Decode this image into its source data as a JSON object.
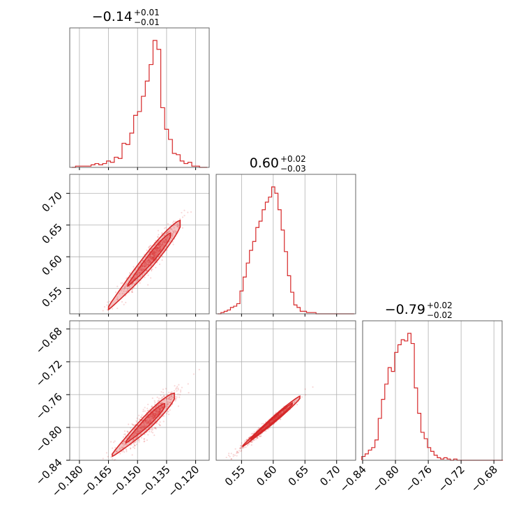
{
  "chart_data": {
    "type": "corner",
    "color": "#d62728",
    "parameters": [
      {
        "title": "−0.14",
        "err_plus": "+0.01",
        "err_minus": "−0.01",
        "range": [
          -0.185,
          -0.113
        ],
        "ticks": [
          -0.18,
          -0.165,
          -0.15,
          -0.135,
          -0.12
        ],
        "tick_labels": [
          "−0.180",
          "−0.165",
          "−0.150",
          "−0.135",
          "−0.120"
        ]
      },
      {
        "title": "0.60",
        "err_plus": "+0.02",
        "err_minus": "−0.03",
        "range": [
          0.51,
          0.73
        ],
        "ticks": [
          0.55,
          0.6,
          0.65,
          0.7
        ],
        "tick_labels": [
          "0.55",
          "0.60",
          "0.65",
          "0.70"
        ]
      },
      {
        "title": "−0.79",
        "err_plus": "+0.02",
        "err_minus": "−0.02",
        "range": [
          -0.84,
          -0.67
        ],
        "ticks": [
          -0.84,
          -0.8,
          -0.76,
          -0.72,
          -0.68
        ],
        "tick_labels": [
          "−0.84",
          "−0.80",
          "−0.76",
          "−0.72",
          "−0.68"
        ]
      }
    ],
    "histograms": [
      {
        "param": 0,
        "centers": [
          -0.183,
          -0.181,
          -0.179,
          -0.177,
          -0.175,
          -0.173,
          -0.171,
          -0.169,
          -0.167,
          -0.165,
          -0.163,
          -0.161,
          -0.159,
          -0.157,
          -0.155,
          -0.153,
          -0.151,
          -0.149,
          -0.147,
          -0.145,
          -0.143,
          -0.141,
          -0.139,
          -0.137,
          -0.135,
          -0.133,
          -0.131,
          -0.129,
          -0.127,
          -0.125,
          -0.123,
          -0.121,
          -0.119,
          -0.117,
          -0.115
        ],
        "counts": [
          0.0,
          0.01,
          0.01,
          0.01,
          0.01,
          0.02,
          0.03,
          0.02,
          0.03,
          0.05,
          0.04,
          0.08,
          0.07,
          0.19,
          0.18,
          0.27,
          0.41,
          0.44,
          0.56,
          0.68,
          0.81,
          1.0,
          0.93,
          0.47,
          0.3,
          0.22,
          0.11,
          0.1,
          0.05,
          0.03,
          0.04,
          0.01,
          0.01,
          0.0,
          0.0
        ]
      },
      {
        "param": 1,
        "centers": [
          0.515,
          0.52,
          0.525,
          0.53,
          0.535,
          0.54,
          0.545,
          0.55,
          0.555,
          0.56,
          0.565,
          0.57,
          0.575,
          0.58,
          0.585,
          0.59,
          0.595,
          0.6,
          0.605,
          0.61,
          0.615,
          0.62,
          0.625,
          0.63,
          0.635,
          0.64,
          0.645,
          0.65,
          0.655,
          0.66,
          0.665,
          0.67,
          0.675,
          0.68,
          0.685,
          0.69,
          0.695,
          0.7,
          0.705,
          0.71,
          0.715,
          0.72,
          0.725
        ],
        "counts": [
          0.0,
          0.01,
          0.02,
          0.03,
          0.05,
          0.06,
          0.08,
          0.18,
          0.29,
          0.4,
          0.5,
          0.57,
          0.68,
          0.73,
          0.82,
          0.88,
          0.92,
          1.0,
          0.95,
          0.82,
          0.66,
          0.49,
          0.3,
          0.17,
          0.07,
          0.05,
          0.02,
          0.02,
          0.01,
          0.01,
          0.01,
          0.0,
          0.0,
          0.0,
          0.0,
          0.0,
          0.0,
          0.0,
          0.0,
          0.0,
          0.0,
          0.0,
          0.0
        ]
      },
      {
        "param": 2,
        "centers": [
          -0.839,
          -0.835,
          -0.831,
          -0.827,
          -0.823,
          -0.819,
          -0.815,
          -0.811,
          -0.807,
          -0.803,
          -0.799,
          -0.795,
          -0.791,
          -0.787,
          -0.783,
          -0.779,
          -0.775,
          -0.771,
          -0.767,
          -0.763,
          -0.759,
          -0.755,
          -0.751,
          -0.747,
          -0.743,
          -0.739,
          -0.735,
          -0.731,
          -0.727,
          -0.723,
          -0.719,
          -0.715,
          -0.711,
          -0.707,
          -0.703,
          -0.699,
          -0.695,
          -0.691,
          -0.687,
          -0.683,
          -0.679,
          -0.675,
          -0.671
        ],
        "counts": [
          0.03,
          0.05,
          0.08,
          0.1,
          0.16,
          0.33,
          0.48,
          0.6,
          0.73,
          0.7,
          0.85,
          0.91,
          0.95,
          0.94,
          1.0,
          0.92,
          0.57,
          0.37,
          0.22,
          0.17,
          0.1,
          0.07,
          0.04,
          0.02,
          0.01,
          0.02,
          0.01,
          0.0,
          0.01,
          0.0,
          0.0,
          0.0,
          0.0,
          0.0,
          0.0,
          0.0,
          0.0,
          0.0,
          0.0,
          0.0,
          0.0,
          0.0,
          0.0
        ]
      }
    ],
    "contours": [
      {
        "x_param": 0,
        "y_param": 1,
        "slope": 3.6,
        "intercept": 1.113,
        "spread": 0.007,
        "levels": [
          {
            "t": [
              -0.165,
              -0.128
            ],
            "halfwidth": 0.015
          },
          {
            "t": [
              -0.155,
              -0.133
            ],
            "halfwidth": 0.009
          }
        ]
      },
      {
        "x_param": 0,
        "y_param": 2,
        "slope": 2.25,
        "intercept": -0.467,
        "spread": 0.006,
        "levels": [
          {
            "t": [
              -0.163,
              -0.131
            ],
            "halfwidth": 0.01
          },
          {
            "t": [
              -0.156,
              -0.136
            ],
            "halfwidth": 0.006
          }
        ]
      },
      {
        "x_param": 1,
        "y_param": 2,
        "slope": 0.66,
        "intercept": -1.187,
        "spread": 0.002,
        "levels": [
          {
            "t": [
              0.552,
              0.642
            ],
            "halfwidth": 0.004
          },
          {
            "t": [
              0.565,
              0.63
            ],
            "halfwidth": 0.0025
          }
        ]
      }
    ],
    "grid": true
  }
}
